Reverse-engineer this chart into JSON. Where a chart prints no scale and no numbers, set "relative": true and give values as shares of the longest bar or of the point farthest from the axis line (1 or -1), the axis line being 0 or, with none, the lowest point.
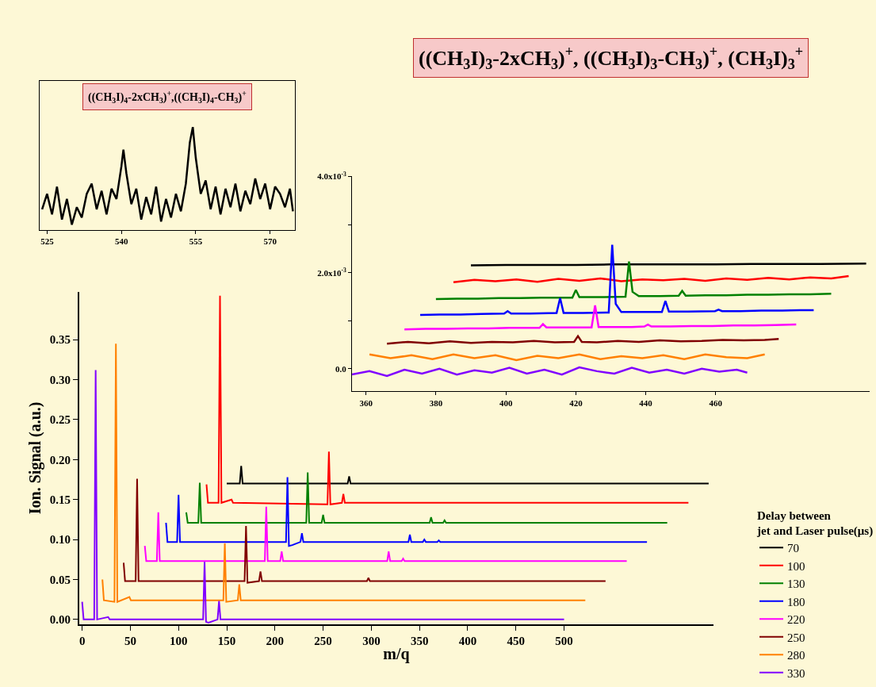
{
  "chart_data": [
    {
      "type": "line",
      "xlabel": "m/q",
      "ylabel": "Ion. Signal (a.u.)",
      "legend_title": "Delay between\njet and Laser pulse(μs)",
      "legend": "bottom right",
      "grid": false,
      "xlim": [
        -3,
        655
      ],
      "xticks": [
        0,
        50,
        100,
        150,
        200,
        250,
        300,
        350,
        400,
        450,
        500
      ],
      "ylim": [
        -0.006,
        0.41
      ],
      "yticks": [
        {
          "value": 0,
          "label": "0.00"
        },
        {
          "value": 0.05,
          "label": "0.05"
        },
        {
          "value": 0.1,
          "label": "0.10"
        },
        {
          "value": 0.15,
          "label": "0.15"
        },
        {
          "value": 0.2,
          "label": "0.20"
        },
        {
          "value": 0.25,
          "label": "0.25"
        },
        {
          "value": 0.3,
          "label": "0.30"
        },
        {
          "value": 0.35,
          "label": "0.35"
        }
      ],
      "series": [
        {
          "name": "70",
          "color": "#000000",
          "x": [
            150,
            163.5,
            165,
            166.5,
            275.5,
            277,
            278.5,
            650
          ],
          "values": [
            0.17,
            0.17,
            0.192,
            0.17,
            0.17,
            0.179,
            0.17,
            0.17
          ]
        },
        {
          "name": "100",
          "color": "#ff0000",
          "x": [
            129,
            130.5,
            141.5,
            143,
            144.5,
            155,
            156.5,
            254.5,
            256,
            257.5,
            269.5,
            271,
            272.5,
            629
          ],
          "values": [
            0.169,
            0.146,
            0.146,
            0.405,
            0.146,
            0.15,
            0.146,
            0.144,
            0.21,
            0.144,
            0.146,
            0.157,
            0.146,
            0.146
          ]
        },
        {
          "name": "130",
          "color": "#008000",
          "x": [
            108,
            109.5,
            120.5,
            122,
            123.5,
            232.5,
            234,
            235.5,
            248.5,
            250,
            251.5,
            360.5,
            362,
            363.5,
            374.5,
            376,
            377.5,
            607
          ],
          "values": [
            0.134,
            0.121,
            0.121,
            0.171,
            0.121,
            0.121,
            0.184,
            0.121,
            0.121,
            0.131,
            0.121,
            0.121,
            0.128,
            0.121,
            0.121,
            0.124,
            0.121,
            0.121
          ]
        },
        {
          "name": "180",
          "color": "#0000ff",
          "x": [
            87,
            88.5,
            98.5,
            100,
            101.5,
            211.5,
            213,
            214.5,
            218,
            226.5,
            228,
            229.5,
            338.5,
            340,
            341.5,
            353.5,
            355,
            356.5,
            368.5,
            370,
            371.5,
            586
          ],
          "values": [
            0.121,
            0.097,
            0.097,
            0.156,
            0.097,
            0.097,
            0.178,
            0.092,
            0.093,
            0.097,
            0.108,
            0.097,
            0.097,
            0.106,
            0.097,
            0.097,
            0.1,
            0.097,
            0.097,
            0.099,
            0.097,
            0.097
          ]
        },
        {
          "name": "220",
          "color": "#ff00ff",
          "x": [
            65,
            66.5,
            77.5,
            79,
            80.5,
            189.5,
            191,
            192.5,
            205.5,
            207,
            208.5,
            316.5,
            318,
            319.5,
            331.5,
            333,
            334.5,
            565
          ],
          "values": [
            0.092,
            0.073,
            0.073,
            0.134,
            0.073,
            0.073,
            0.141,
            0.073,
            0.073,
            0.085,
            0.073,
            0.073,
            0.085,
            0.073,
            0.073,
            0.076,
            0.073,
            0.073
          ]
        },
        {
          "name": "250",
          "color": "#800000",
          "x": [
            43,
            44.5,
            55.5,
            57,
            58.5,
            168.5,
            170,
            171.5,
            183.5,
            185,
            186.5,
            295.5,
            297,
            298.5,
            543
          ],
          "values": [
            0.071,
            0.048,
            0.048,
            0.176,
            0.048,
            0.048,
            0.117,
            0.046,
            0.048,
            0.06,
            0.048,
            0.048,
            0.052,
            0.048,
            0.048
          ]
        },
        {
          "name": "280",
          "color": "#ff8000",
          "x": [
            21,
            22.5,
            33.5,
            35,
            36.5,
            49,
            50.5,
            146.5,
            148,
            149.5,
            161.5,
            163,
            164.5,
            522
          ],
          "values": [
            0.05,
            0.024,
            0.022,
            0.345,
            0.022,
            0.028,
            0.024,
            0.024,
            0.095,
            0.022,
            0.024,
            0.044,
            0.024,
            0.024
          ]
        },
        {
          "name": "330",
          "color": "#8000ff",
          "x": [
            0,
            1.5,
            12.5,
            14,
            15.5,
            27,
            28.5,
            125.5,
            127,
            128.5,
            131,
            140.5,
            142,
            143.5,
            500
          ],
          "values": [
            0.022,
            0,
            0,
            0.312,
            0,
            0.003,
            0,
            0,
            0.072,
            -0.003,
            -0.004,
            0,
            0.023,
            0,
            0
          ]
        }
      ]
    },
    {
      "type": "line",
      "title": "((CH$_{3}$I)$_{3}$-2xCH$_{3}$)$^{+}$, ((CH$_{3}$I)$_{3}$-CH$_{3}$)$^{+}$, (CH$_{3}$I)$_{3}$$^{+}$",
      "grid": false,
      "xlim": [
        356,
        504
      ],
      "xticks": [
        360,
        380,
        400,
        420,
        440,
        460
      ],
      "ylim": [
        -0.00047,
        0.004
      ],
      "yticks": [
        {
          "value": 0,
          "label": "0.0"
        },
        {
          "value": 0.001,
          "label": null
        },
        {
          "value": 0.002,
          "label": "2.0x10$^{-3}$"
        },
        {
          "value": 0.003,
          "label": null
        },
        {
          "value": 0.004,
          "label": "4.0x10$^{-3}$"
        }
      ],
      "series": [
        {
          "color": "#000000",
          "x": [
            390,
            400,
            410,
            420,
            430,
            440,
            450,
            460,
            470,
            480,
            490,
            503
          ],
          "values": [
            0.00215,
            0.00216,
            0.00216,
            0.00216,
            0.00217,
            0.00217,
            0.00217,
            0.00217,
            0.00218,
            0.00218,
            0.00218,
            0.00219
          ]
        },
        {
          "color": "#ff0000",
          "x": [
            385,
            391,
            397,
            403,
            409,
            415,
            421,
            427,
            433,
            439,
            445,
            451,
            457,
            463,
            469,
            475,
            481,
            487,
            493,
            498
          ],
          "values": [
            0.0018,
            0.00185,
            0.00182,
            0.00186,
            0.00181,
            0.00187,
            0.00183,
            0.00188,
            0.00182,
            0.00186,
            0.00184,
            0.00187,
            0.00183,
            0.00188,
            0.00185,
            0.00189,
            0.00186,
            0.0019,
            0.00188,
            0.00193
          ]
        },
        {
          "color": "#008000",
          "x": [
            380,
            386,
            392,
            398,
            404,
            410,
            419,
            420,
            421,
            426,
            434.2,
            435.2,
            436.2,
            438,
            444,
            449.4,
            450.4,
            451.4,
            457,
            463,
            469,
            475,
            481,
            487,
            493
          ],
          "values": [
            0.00145,
            0.00146,
            0.00146,
            0.00147,
            0.00147,
            0.00148,
            0.00148,
            0.00164,
            0.00149,
            0.00149,
            0.0015,
            0.00223,
            0.0016,
            0.00151,
            0.00151,
            0.00152,
            0.00162,
            0.00152,
            0.00153,
            0.00153,
            0.00154,
            0.00154,
            0.00155,
            0.00155,
            0.00156
          ]
        },
        {
          "color": "#0000ff",
          "x": [
            375.5,
            381,
            387,
            393,
            399.5,
            400.5,
            401.5,
            407,
            414.5,
            415.5,
            416.5,
            422,
            429.4,
            430.4,
            431.4,
            433,
            439,
            444.6,
            445.6,
            446.6,
            452,
            459.8,
            460.8,
            461.8,
            467,
            473,
            479,
            484,
            488
          ],
          "values": [
            0.00112,
            0.00113,
            0.00113,
            0.00114,
            0.00115,
            0.0012,
            0.00115,
            0.00115,
            0.00116,
            0.00147,
            0.00116,
            0.00116,
            0.00117,
            0.00258,
            0.00135,
            0.00118,
            0.00118,
            0.00118,
            0.00141,
            0.00119,
            0.00119,
            0.0012,
            0.00123,
            0.0012,
            0.0012,
            0.00121,
            0.00121,
            0.00122,
            0.00122
          ]
        },
        {
          "color": "#ff00ff",
          "x": [
            371,
            377,
            383,
            389,
            395,
            401,
            405,
            409.6,
            410.6,
            411.6,
            416,
            420,
            424.5,
            425.5,
            426.5,
            431,
            436,
            439.6,
            440.6,
            441.6,
            447,
            453,
            459,
            465,
            471,
            477,
            483
          ],
          "values": [
            0.00082,
            0.00083,
            0.00083,
            0.00084,
            0.00084,
            0.00085,
            0.00085,
            0.00085,
            0.00093,
            0.00086,
            0.00086,
            0.00086,
            0.00086,
            0.00132,
            0.00087,
            0.00087,
            0.00087,
            0.00088,
            0.00092,
            0.00088,
            0.00088,
            0.00089,
            0.00089,
            0.0009,
            0.0009,
            0.00091,
            0.00092
          ]
        },
        {
          "color": "#800000",
          "x": [
            366,
            372,
            378,
            384,
            390,
            396,
            402,
            408,
            414,
            419.5,
            420.6,
            421.7,
            426,
            432,
            438,
            444,
            450,
            456,
            462,
            468,
            474,
            478
          ],
          "values": [
            0.00052,
            0.00056,
            0.00053,
            0.00057,
            0.00054,
            0.00056,
            0.00055,
            0.00058,
            0.00055,
            0.00056,
            0.00068,
            0.00056,
            0.00055,
            0.00058,
            0.00056,
            0.00059,
            0.00057,
            0.00058,
            0.0006,
            0.00059,
            0.0006,
            0.00062
          ]
        },
        {
          "color": "#ff8000",
          "x": [
            361,
            367,
            373,
            379,
            385,
            391,
            397,
            403,
            409,
            415,
            421,
            427,
            433,
            439,
            445,
            451,
            457,
            463,
            469,
            474
          ],
          "values": [
            0.0003,
            0.00022,
            0.00028,
            0.0002,
            0.0003,
            0.00022,
            0.00028,
            0.00018,
            0.00027,
            0.00022,
            0.0003,
            0.0002,
            0.00026,
            0.00022,
            0.00028,
            0.0002,
            0.0003,
            0.00024,
            0.00022,
            0.0003
          ]
        },
        {
          "color": "#8000ff",
          "x": [
            356,
            361,
            366,
            371,
            376,
            381,
            386,
            391,
            396,
            401,
            406,
            411,
            416,
            421,
            426,
            431,
            436,
            441,
            446,
            451,
            456,
            461,
            466,
            469
          ],
          "values": [
            -0.00012,
            -5e-05,
            -0.00015,
            -2e-05,
            -0.0001,
            0.0,
            -0.00012,
            -3e-05,
            -8e-05,
            2e-05,
            -0.0001,
            -2e-05,
            -0.00012,
            3e-05,
            -5e-05,
            -0.0001,
            2e-05,
            -8e-05,
            -2e-05,
            -0.0001,
            0.0,
            -6e-05,
            -2e-05,
            -8e-05
          ]
        }
      ]
    },
    {
      "type": "line",
      "title": "((CH$_{3}$I)$_{4}$-2xCH$_{3}$)$^{+}$,((CH$_{3}$I)$_{4}$-CH$_{3}$)$^{+}$",
      "relative": true,
      "grid": false,
      "xlim": [
        523.5,
        575
      ],
      "xticks": [
        525,
        540,
        555,
        570
      ],
      "series": [
        {
          "color": "#000000",
          "x": [
            524,
            525,
            526,
            527,
            528,
            529,
            530,
            531,
            532,
            533,
            534,
            535,
            536,
            537,
            538,
            539,
            540,
            540.4,
            541,
            542,
            543,
            544,
            545,
            546,
            547,
            548,
            549,
            550,
            551,
            552,
            553,
            553.8,
            554.4,
            555,
            556,
            557,
            558,
            559,
            560,
            561,
            562,
            563,
            564,
            565,
            566,
            567,
            568,
            569,
            570,
            571,
            572,
            573,
            574,
            574.6
          ],
          "values": [
            0.2,
            0.35,
            0.15,
            0.42,
            0.1,
            0.3,
            0.05,
            0.22,
            0.12,
            0.35,
            0.45,
            0.2,
            0.38,
            0.15,
            0.4,
            0.3,
            0.62,
            0.78,
            0.55,
            0.25,
            0.4,
            0.1,
            0.32,
            0.15,
            0.42,
            0.08,
            0.3,
            0.12,
            0.35,
            0.18,
            0.45,
            0.85,
            1.0,
            0.7,
            0.35,
            0.48,
            0.2,
            0.42,
            0.15,
            0.4,
            0.22,
            0.45,
            0.18,
            0.38,
            0.25,
            0.5,
            0.3,
            0.45,
            0.2,
            0.42,
            0.35,
            0.22,
            0.4,
            0.18
          ]
        }
      ]
    }
  ]
}
